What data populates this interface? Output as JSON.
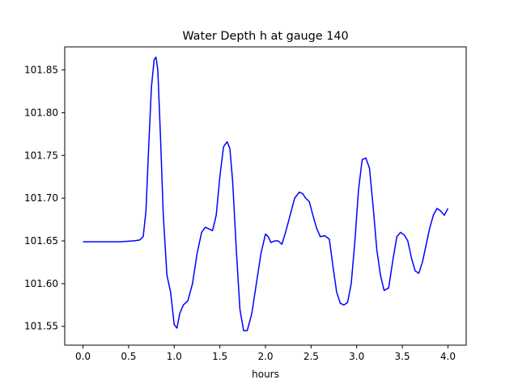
{
  "chart_data": {
    "type": "line",
    "title": "Water Depth h at gauge 140",
    "xlabel": "hours",
    "ylabel": "",
    "xlim": [
      -0.2,
      4.2
    ],
    "ylim": [
      101.528,
      101.877
    ],
    "xticks": [
      0.0,
      0.5,
      1.0,
      1.5,
      2.0,
      2.5,
      3.0,
      3.5,
      4.0
    ],
    "xtick_labels": [
      "0.0",
      "0.5",
      "1.0",
      "1.5",
      "2.0",
      "2.5",
      "3.0",
      "3.5",
      "4.0"
    ],
    "yticks": [
      101.55,
      101.6,
      101.65,
      101.7,
      101.75,
      101.8,
      101.85
    ],
    "ytick_labels": [
      "101.55",
      "101.60",
      "101.65",
      "101.70",
      "101.75",
      "101.80",
      "101.85"
    ],
    "grid": false,
    "series": [
      {
        "color": "#0000ff",
        "x": [
          0.0,
          0.2,
          0.4,
          0.55,
          0.62,
          0.66,
          0.69,
          0.72,
          0.75,
          0.78,
          0.8,
          0.82,
          0.85,
          0.88,
          0.92,
          0.96,
          1.0,
          1.03,
          1.06,
          1.1,
          1.15,
          1.2,
          1.25,
          1.3,
          1.34,
          1.38,
          1.42,
          1.46,
          1.5,
          1.54,
          1.58,
          1.61,
          1.64,
          1.68,
          1.72,
          1.76,
          1.8,
          1.85,
          1.9,
          1.95,
          2.0,
          2.03,
          2.06,
          2.1,
          2.14,
          2.18,
          2.22,
          2.27,
          2.32,
          2.37,
          2.41,
          2.44,
          2.48,
          2.52,
          2.56,
          2.6,
          2.65,
          2.7,
          2.74,
          2.78,
          2.82,
          2.86,
          2.9,
          2.94,
          2.98,
          3.02,
          3.06,
          3.1,
          3.14,
          3.18,
          3.22,
          3.26,
          3.3,
          3.35,
          3.4,
          3.44,
          3.48,
          3.52,
          3.56,
          3.6,
          3.64,
          3.68,
          3.72,
          3.76,
          3.8,
          3.84,
          3.88,
          3.92,
          3.96,
          4.0
        ],
        "y": [
          101.649,
          101.649,
          101.649,
          101.65,
          101.651,
          101.655,
          101.685,
          101.76,
          101.83,
          101.862,
          101.865,
          101.85,
          101.77,
          101.68,
          101.61,
          101.59,
          101.552,
          101.548,
          101.565,
          101.575,
          101.58,
          101.6,
          101.635,
          101.66,
          101.666,
          101.664,
          101.662,
          101.68,
          101.725,
          101.76,
          101.766,
          101.758,
          101.72,
          101.64,
          101.57,
          101.545,
          101.545,
          101.565,
          101.6,
          101.635,
          101.658,
          101.655,
          101.648,
          101.65,
          101.65,
          101.646,
          101.66,
          101.68,
          101.7,
          101.707,
          101.705,
          101.7,
          101.696,
          101.68,
          101.665,
          101.655,
          101.656,
          101.652,
          101.62,
          101.59,
          101.577,
          101.575,
          101.578,
          101.6,
          101.65,
          101.71,
          101.745,
          101.747,
          101.735,
          101.69,
          101.64,
          101.61,
          101.592,
          101.595,
          101.63,
          101.655,
          101.66,
          101.657,
          101.65,
          101.63,
          101.615,
          101.612,
          101.625,
          101.645,
          101.665,
          101.68,
          101.688,
          101.685,
          101.68,
          101.688
        ]
      }
    ]
  }
}
